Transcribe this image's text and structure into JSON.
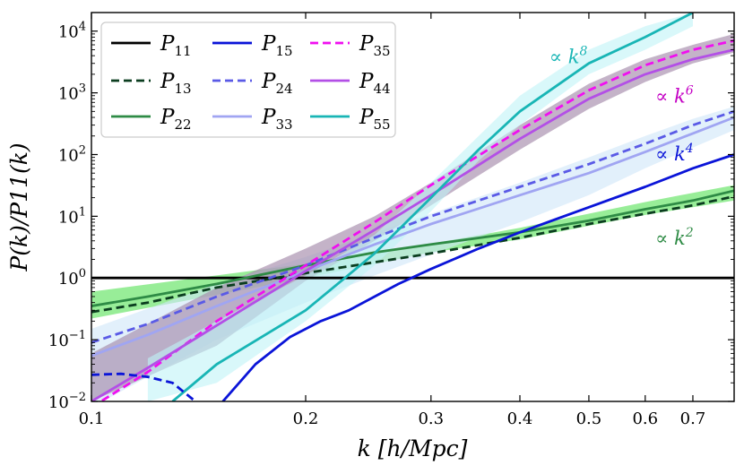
{
  "chart_data": {
    "type": "line",
    "title": "",
    "xlabel": "k [h/Mpc]",
    "ylabel": "P(k)/P11(k)",
    "xscale": "log",
    "yscale": "log",
    "xlim": [
      0.1,
      0.8
    ],
    "ylim": [
      0.01,
      20000
    ],
    "xticks": [
      {
        "value": 0.1,
        "label": "0.1"
      },
      {
        "value": 0.2,
        "label": "0.2"
      },
      {
        "value": 0.3,
        "label": "0.3"
      },
      {
        "value": 0.4,
        "label": "0.4"
      },
      {
        "value": 0.5,
        "label": "0.5"
      },
      {
        "value": 0.6,
        "label": "0.6"
      },
      {
        "value": 0.7,
        "label": "0.7"
      }
    ],
    "yticks": [
      {
        "value": 0.01,
        "base": "10",
        "exp": "−2"
      },
      {
        "value": 0.1,
        "base": "10",
        "exp": "−1"
      },
      {
        "value": 1,
        "base": "10",
        "exp": "0"
      },
      {
        "value": 10,
        "base": "10",
        "exp": "1"
      },
      {
        "value": 100,
        "base": "10",
        "exp": "2"
      },
      {
        "value": 1000,
        "base": "10",
        "exp": "3"
      },
      {
        "value": 10000,
        "base": "10",
        "exp": "4"
      }
    ],
    "legend": {
      "placement": "top-left",
      "columns": 3
    },
    "series": [
      {
        "name": "P11",
        "label_main": "P",
        "label_sub": "11",
        "color": "#000000",
        "dash": "",
        "x": [
          0.1,
          0.8
        ],
        "y": [
          1,
          1
        ]
      },
      {
        "name": "P13",
        "label_main": "P",
        "label_sub": "13",
        "color": "#0b3d1f",
        "dash": "9,5",
        "x": [
          0.1,
          0.12,
          0.15,
          0.2,
          0.25,
          0.3,
          0.4,
          0.5,
          0.6,
          0.7,
          0.8
        ],
        "y": [
          0.28,
          0.4,
          0.7,
          1.2,
          1.8,
          2.5,
          4.5,
          7.5,
          11,
          15,
          21
        ]
      },
      {
        "name": "P22",
        "label_main": "P",
        "label_sub": "22",
        "color": "#2e8b45",
        "dash": "",
        "x": [
          0.1,
          0.12,
          0.15,
          0.2,
          0.25,
          0.3,
          0.4,
          0.5,
          0.6,
          0.7,
          0.8
        ],
        "y": [
          0.35,
          0.5,
          0.8,
          1.6,
          2.6,
          3.5,
          5.5,
          8.5,
          13,
          18,
          26
        ]
      },
      {
        "name": "P15",
        "label_main": "P",
        "label_sub": "15",
        "color": "#0a14d8",
        "dash": "",
        "x": [
          0.153,
          0.17,
          0.19,
          0.21,
          0.23,
          0.25,
          0.27,
          0.3,
          0.35,
          0.4,
          0.45,
          0.5,
          0.6,
          0.7,
          0.8
        ],
        "y": [
          0.01,
          0.04,
          0.11,
          0.2,
          0.3,
          0.5,
          0.8,
          1.4,
          3,
          5.5,
          9,
          14,
          30,
          60,
          100
        ]
      },
      {
        "name": "P24",
        "label_main": "P",
        "label_sub": "24",
        "color": "#5a5ae6",
        "dash": "9,5",
        "x": [
          0.1,
          0.12,
          0.15,
          0.2,
          0.25,
          0.3,
          0.4,
          0.5,
          0.6,
          0.7,
          0.8
        ],
        "y": [
          0.09,
          0.18,
          0.5,
          1.6,
          4.5,
          10,
          30,
          70,
          150,
          300,
          500
        ]
      },
      {
        "name": "P33",
        "label_main": "P",
        "label_sub": "33",
        "color": "#a0a5f2",
        "dash": "",
        "x": [
          0.1,
          0.12,
          0.15,
          0.2,
          0.25,
          0.3,
          0.4,
          0.5,
          0.6,
          0.7,
          0.8
        ],
        "y": [
          0.055,
          0.12,
          0.35,
          1.3,
          3.5,
          7.5,
          22,
          50,
          110,
          220,
          400
        ]
      },
      {
        "name": "P35",
        "label_main": "P",
        "label_sub": "35",
        "color": "#f00ff0",
        "dash": "9,5",
        "x": [
          0.1,
          0.12,
          0.15,
          0.2,
          0.25,
          0.3,
          0.4,
          0.5,
          0.6,
          0.7,
          0.8
        ],
        "y": [
          0.008,
          0.03,
          0.2,
          1.6,
          8,
          32,
          250,
          1100,
          2800,
          5000,
          7000
        ]
      },
      {
        "name": "P44",
        "label_main": "P",
        "label_sub": "44",
        "color": "#b34fe6",
        "dash": "",
        "x": [
          0.1,
          0.12,
          0.15,
          0.2,
          0.25,
          0.3,
          0.4,
          0.5,
          0.6,
          0.7,
          0.8
        ],
        "y": [
          0.01,
          0.035,
          0.17,
          1.3,
          6,
          22,
          180,
          800,
          2000,
          3500,
          5000
        ]
      },
      {
        "name": "P55",
        "label_main": "P",
        "label_sub": "55",
        "color": "#18b5b5",
        "dash": "",
        "x": [
          0.13,
          0.15,
          0.2,
          0.25,
          0.3,
          0.35,
          0.4,
          0.5,
          0.6,
          0.7
        ],
        "y": [
          0.01,
          0.04,
          0.3,
          2.5,
          20,
          120,
          500,
          3000,
          8000,
          20000
        ]
      },
      {
        "name": "P15-negative",
        "label_main": "",
        "label_sub": "",
        "color": "#0a14d8",
        "dash": "9,5",
        "x": [
          0.1,
          0.11,
          0.12,
          0.13,
          0.14
        ],
        "y": [
          0.027,
          0.028,
          0.025,
          0.02,
          0.01
        ]
      }
    ],
    "bands": [
      {
        "name": "k2-band",
        "color": "#7ee87e",
        "opacity": 0.8,
        "x": [
          0.1,
          0.2,
          0.3,
          0.4,
          0.5,
          0.6,
          0.7,
          0.8
        ],
        "low": [
          0.22,
          1.0,
          2.6,
          4.2,
          7.0,
          10.5,
          14.0,
          18.0
        ],
        "high": [
          0.6,
          1.7,
          3.6,
          6.5,
          11.0,
          17.0,
          24.0,
          32.0
        ]
      },
      {
        "name": "k4-band",
        "color": "#cfe6f8",
        "opacity": 0.6,
        "x": [
          0.1,
          0.15,
          0.2,
          0.25,
          0.3,
          0.4,
          0.5,
          0.6,
          0.7,
          0.8
        ],
        "low": [
          0.008,
          0.1,
          0.4,
          1.1,
          2.4,
          8,
          22,
          60,
          130,
          250
        ],
        "high": [
          0.15,
          0.8,
          2.2,
          5.4,
          11,
          35,
          90,
          200,
          380,
          600
        ]
      },
      {
        "name": "k6-band",
        "color": "#a58aab",
        "opacity": 0.65,
        "x": [
          0.1,
          0.15,
          0.2,
          0.25,
          0.3,
          0.4,
          0.5,
          0.6,
          0.7,
          0.8
        ],
        "low": [
          0.01,
          0.08,
          0.9,
          4,
          15,
          120,
          550,
          1500,
          3000,
          4500
        ],
        "high": [
          0.06,
          0.7,
          3,
          10,
          35,
          300,
          1400,
          3500,
          6000,
          9000
        ]
      },
      {
        "name": "k8-band",
        "color": "#bff3f7",
        "opacity": 0.6,
        "x": [
          0.12,
          0.15,
          0.2,
          0.25,
          0.3,
          0.35,
          0.4,
          0.5,
          0.6,
          0.7
        ],
        "low": [
          0.01,
          0.02,
          0.2,
          1.6,
          12,
          80,
          300,
          2000,
          5000,
          12000
        ],
        "high": [
          0.05,
          0.2,
          1.1,
          5,
          35,
          200,
          900,
          5000,
          12000,
          20000
        ]
      }
    ],
    "annotations": [
      {
        "text": "∝ k",
        "sup": "8",
        "color": "#18b5b5",
        "x": 0.44,
        "y": 3000
      },
      {
        "text": "∝ k",
        "sup": "6",
        "color": "#c400c4",
        "x": 0.62,
        "y": 700
      },
      {
        "text": "∝ k",
        "sup": "4",
        "color": "#0a14d8",
        "x": 0.62,
        "y": 80
      },
      {
        "text": "∝ k",
        "sup": "2",
        "color": "#2e8b45",
        "x": 0.62,
        "y": 3.5
      }
    ]
  }
}
